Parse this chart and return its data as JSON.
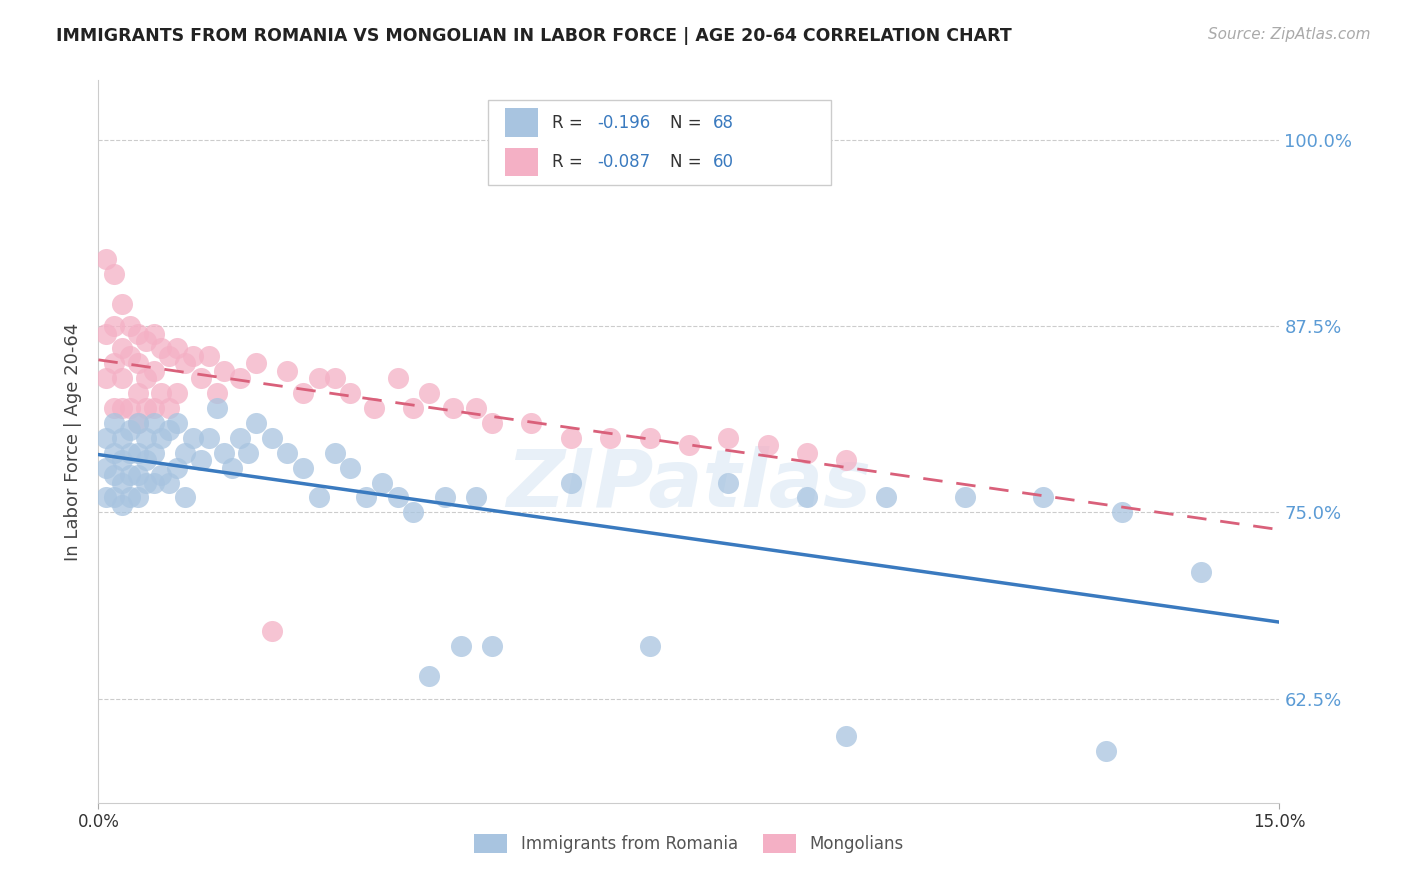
{
  "title": "IMMIGRANTS FROM ROMANIA VS MONGOLIAN IN LABOR FORCE | AGE 20-64 CORRELATION CHART",
  "source": "Source: ZipAtlas.com",
  "ylabel": "In Labor Force | Age 20-64",
  "y_ticks": [
    0.625,
    0.75,
    0.875,
    1.0
  ],
  "y_tick_labels": [
    "62.5%",
    "75.0%",
    "87.5%",
    "100.0%"
  ],
  "x_min": 0.0,
  "x_max": 0.15,
  "y_min": 0.555,
  "y_max": 1.04,
  "dot_color_blue": "#a8c4e0",
  "dot_color_pink": "#f4b0c5",
  "line_color_blue": "#3a7abf",
  "line_color_pink": "#d9607a",
  "legend_color1": "#a8c4e0",
  "legend_color2": "#f4b0c5",
  "R1": "-0.196",
  "N1": "68",
  "R2": "-0.087",
  "N2": "60",
  "watermark": "ZIPatlas",
  "legend1_label": "Immigrants from Romania",
  "legend2_label": "Mongolians",
  "romania_x": [
    0.001,
    0.001,
    0.001,
    0.002,
    0.002,
    0.002,
    0.002,
    0.003,
    0.003,
    0.003,
    0.003,
    0.004,
    0.004,
    0.004,
    0.004,
    0.005,
    0.005,
    0.005,
    0.005,
    0.006,
    0.006,
    0.006,
    0.007,
    0.007,
    0.007,
    0.008,
    0.008,
    0.009,
    0.009,
    0.01,
    0.01,
    0.011,
    0.011,
    0.012,
    0.013,
    0.014,
    0.015,
    0.016,
    0.017,
    0.018,
    0.019,
    0.02,
    0.022,
    0.024,
    0.026,
    0.028,
    0.03,
    0.032,
    0.034,
    0.036,
    0.038,
    0.04,
    0.042,
    0.044,
    0.046,
    0.048,
    0.05,
    0.06,
    0.07,
    0.08,
    0.09,
    0.1,
    0.11,
    0.12,
    0.13,
    0.14,
    0.128,
    0.095
  ],
  "romania_y": [
    0.8,
    0.78,
    0.76,
    0.81,
    0.79,
    0.775,
    0.76,
    0.8,
    0.785,
    0.77,
    0.755,
    0.805,
    0.79,
    0.775,
    0.76,
    0.81,
    0.79,
    0.775,
    0.76,
    0.8,
    0.785,
    0.77,
    0.81,
    0.79,
    0.77,
    0.8,
    0.775,
    0.805,
    0.77,
    0.81,
    0.78,
    0.79,
    0.76,
    0.8,
    0.785,
    0.8,
    0.82,
    0.79,
    0.78,
    0.8,
    0.79,
    0.81,
    0.8,
    0.79,
    0.78,
    0.76,
    0.79,
    0.78,
    0.76,
    0.77,
    0.76,
    0.75,
    0.64,
    0.76,
    0.66,
    0.76,
    0.66,
    0.77,
    0.66,
    0.77,
    0.76,
    0.76,
    0.76,
    0.76,
    0.75,
    0.71,
    0.59,
    0.6
  ],
  "mongolia_x": [
    0.001,
    0.001,
    0.001,
    0.002,
    0.002,
    0.002,
    0.002,
    0.003,
    0.003,
    0.003,
    0.003,
    0.004,
    0.004,
    0.004,
    0.005,
    0.005,
    0.005,
    0.005,
    0.006,
    0.006,
    0.006,
    0.007,
    0.007,
    0.007,
    0.008,
    0.008,
    0.009,
    0.009,
    0.01,
    0.01,
    0.011,
    0.012,
    0.013,
    0.014,
    0.015,
    0.016,
    0.018,
    0.02,
    0.022,
    0.024,
    0.026,
    0.028,
    0.03,
    0.032,
    0.035,
    0.038,
    0.04,
    0.042,
    0.045,
    0.048,
    0.05,
    0.055,
    0.06,
    0.065,
    0.07,
    0.075,
    0.08,
    0.085,
    0.09,
    0.095
  ],
  "mongolia_y": [
    0.92,
    0.87,
    0.84,
    0.91,
    0.875,
    0.85,
    0.82,
    0.89,
    0.86,
    0.84,
    0.82,
    0.875,
    0.855,
    0.82,
    0.87,
    0.85,
    0.83,
    0.81,
    0.865,
    0.84,
    0.82,
    0.87,
    0.845,
    0.82,
    0.86,
    0.83,
    0.855,
    0.82,
    0.86,
    0.83,
    0.85,
    0.855,
    0.84,
    0.855,
    0.83,
    0.845,
    0.84,
    0.85,
    0.67,
    0.845,
    0.83,
    0.84,
    0.84,
    0.83,
    0.82,
    0.84,
    0.82,
    0.83,
    0.82,
    0.82,
    0.81,
    0.81,
    0.8,
    0.8,
    0.8,
    0.795,
    0.8,
    0.795,
    0.79,
    0.785
  ]
}
